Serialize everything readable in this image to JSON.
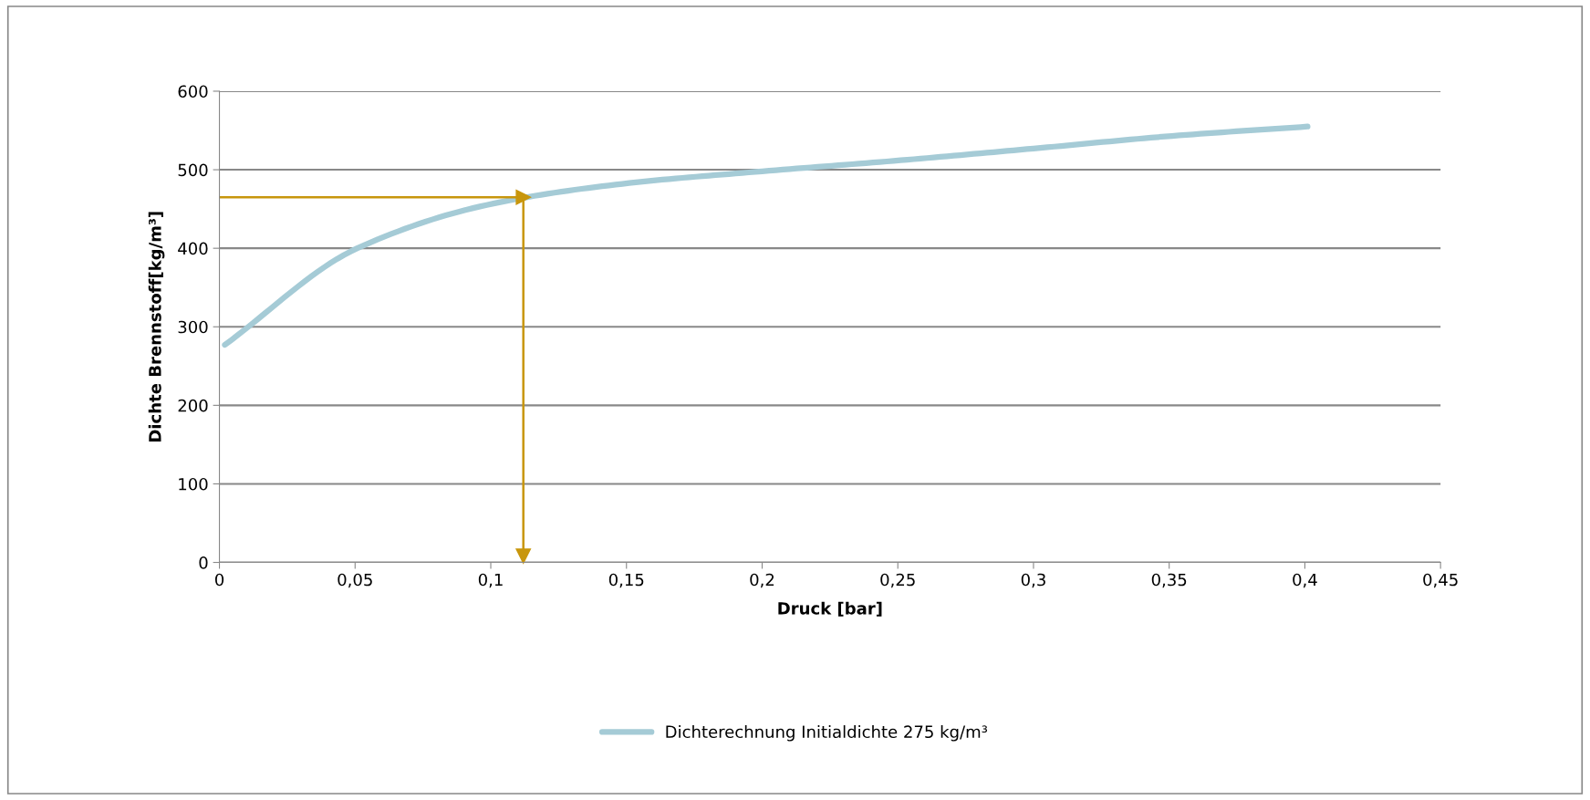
{
  "chart_data": {
    "type": "line",
    "xlabel": "Druck [bar]",
    "ylabel": "Dichte Brennstoff[kg/m³]",
    "xlim": [
      0,
      0.45
    ],
    "ylim": [
      0,
      600
    ],
    "xticks": [
      {
        "value": 0,
        "label": "0"
      },
      {
        "value": 0.05,
        "label": "0,05"
      },
      {
        "value": 0.1,
        "label": "0,1"
      },
      {
        "value": 0.15,
        "label": "0,15"
      },
      {
        "value": 0.2,
        "label": "0,2"
      },
      {
        "value": 0.25,
        "label": "0,25"
      },
      {
        "value": 0.3,
        "label": "0,3"
      },
      {
        "value": 0.35,
        "label": "0,35"
      },
      {
        "value": 0.4,
        "label": "0,4"
      },
      {
        "value": 0.45,
        "label": "0,45"
      }
    ],
    "yticks": [
      0,
      100,
      200,
      300,
      400,
      500,
      600
    ],
    "series": [
      {
        "name": "Dichterechnung Initialdichte 275 kg/m³",
        "color": "#a5cbd6",
        "x": [
          0.002,
          0.0508,
          0.101,
          0.151,
          0.2,
          0.251,
          0.3,
          0.351,
          0.401
        ],
        "values": [
          277,
          400,
          457,
          483,
          498,
          512,
          527,
          543,
          555
        ]
      },
      {
        "type": "line",
        "color": "#c8960c",
        "marker": "triangle",
        "x": [
          0,
          0.112
        ],
        "values": [
          465,
          465
        ]
      },
      {
        "type": "line",
        "color": "#c8960c",
        "marker": "triangle",
        "x": [
          0.112,
          0.112
        ],
        "values": [
          465,
          8
        ]
      }
    ],
    "grid": "y",
    "legend": "bottom"
  }
}
